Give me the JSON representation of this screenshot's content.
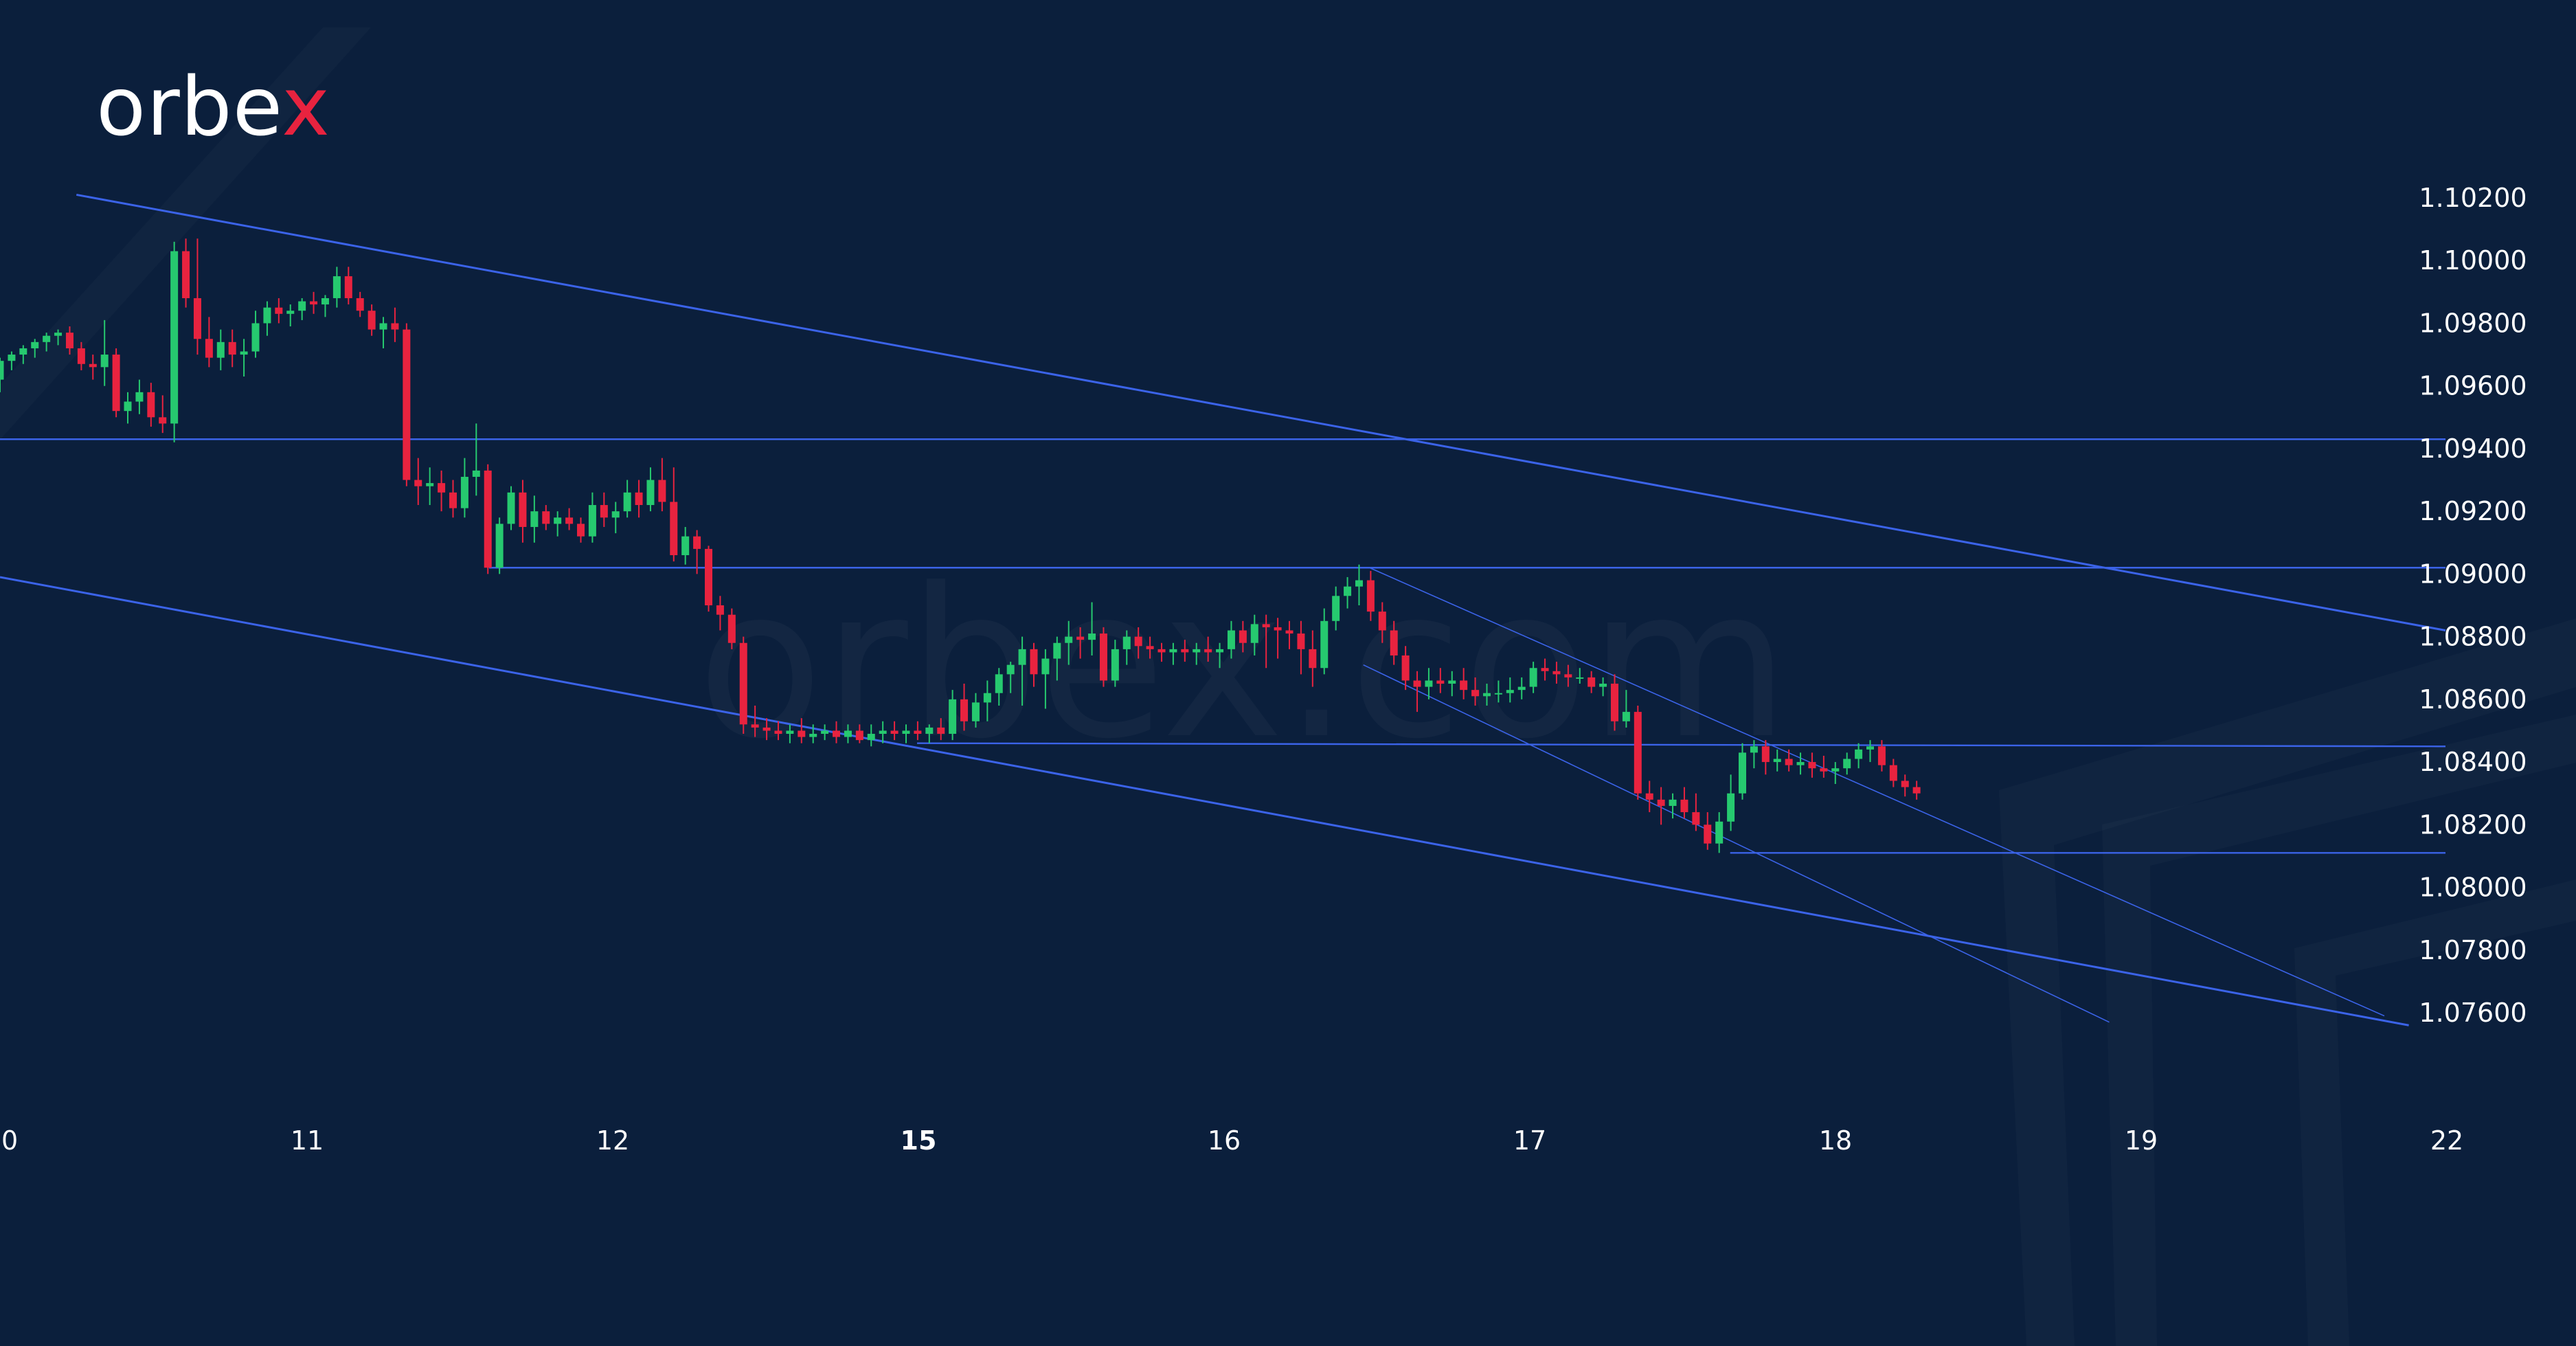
{
  "brand": {
    "logo_main": "orbe",
    "logo_accent": "x",
    "watermark": "orbex.com"
  },
  "colors": {
    "background": "#0b1f3c",
    "bull": "#26c96f",
    "bear": "#e8233f",
    "trendline": "#3b63e8",
    "axis_text": "#ffffff"
  },
  "chart_data": {
    "type": "candlestick",
    "title": "",
    "xlabel": "",
    "ylabel": "",
    "ylim": [
      1.0752,
      1.1025
    ],
    "x_ticks": [
      {
        "t": 0,
        "label": "0"
      },
      {
        "t": 10,
        "label": "11"
      },
      {
        "t": 20,
        "label": "12"
      },
      {
        "t": 30,
        "label": "15",
        "bold": true
      },
      {
        "t": 40,
        "label": "16"
      },
      {
        "t": 50,
        "label": "17"
      },
      {
        "t": 60,
        "label": "18"
      },
      {
        "t": 70,
        "label": "19"
      },
      {
        "t": 80,
        "label": "22"
      }
    ],
    "y_ticks": [
      "1.10200",
      "1.10000",
      "1.09800",
      "1.09600",
      "1.09400",
      "1.09200",
      "1.09000",
      "1.08800",
      "1.08600",
      "1.08400",
      "1.08200",
      "1.08000",
      "1.07800",
      "1.07600"
    ],
    "candles": [
      [
        0.0,
        1.0962,
        1.0969,
        1.0958,
        1.0968
      ],
      [
        0.38,
        1.0968,
        1.0971,
        1.0965,
        1.097
      ],
      [
        0.76,
        1.097,
        1.0973,
        1.0967,
        1.0972
      ],
      [
        1.14,
        1.0972,
        1.0975,
        1.0969,
        1.0974
      ],
      [
        1.52,
        1.0974,
        1.0977,
        1.0971,
        1.0976
      ],
      [
        1.9,
        1.0976,
        1.0978,
        1.0973,
        1.0977
      ],
      [
        2.28,
        1.0977,
        1.0979,
        1.097,
        1.0972
      ],
      [
        2.66,
        1.0972,
        1.0974,
        1.0965,
        1.0967
      ],
      [
        3.04,
        1.0967,
        1.097,
        1.0962,
        1.0966
      ],
      [
        3.42,
        1.0966,
        1.0981,
        1.096,
        1.097
      ],
      [
        3.8,
        1.097,
        1.0972,
        1.095,
        1.0952
      ],
      [
        4.18,
        1.0952,
        1.0958,
        1.0948,
        1.0955
      ],
      [
        4.56,
        1.0955,
        1.0962,
        1.0951,
        1.0958
      ],
      [
        4.94,
        1.0958,
        1.0961,
        1.0947,
        1.095
      ],
      [
        5.32,
        1.095,
        1.0957,
        1.0945,
        1.0948
      ],
      [
        5.7,
        1.0948,
        1.1006,
        1.0942,
        1.1003
      ],
      [
        6.08,
        1.1003,
        1.1007,
        1.0985,
        1.0988
      ],
      [
        6.46,
        1.0988,
        1.1007,
        1.097,
        1.0975
      ],
      [
        6.84,
        1.0975,
        1.0982,
        1.0966,
        1.0969
      ],
      [
        7.22,
        1.0969,
        1.0978,
        1.0965,
        1.0974
      ],
      [
        7.6,
        1.0974,
        1.0978,
        1.0966,
        1.097
      ],
      [
        7.98,
        1.097,
        1.0975,
        1.0963,
        1.0971
      ],
      [
        8.36,
        1.0971,
        1.0984,
        1.0969,
        1.098
      ],
      [
        8.74,
        1.098,
        1.0987,
        1.0976,
        1.0985
      ],
      [
        9.12,
        1.0985,
        1.0988,
        1.098,
        1.0983
      ],
      [
        9.5,
        1.0983,
        1.0986,
        1.0979,
        1.0984
      ],
      [
        9.88,
        1.0984,
        1.0988,
        1.0981,
        1.0987
      ],
      [
        10.26,
        1.0987,
        1.099,
        1.0983,
        1.0986
      ],
      [
        10.64,
        1.0986,
        1.0989,
        1.0982,
        1.0988
      ],
      [
        11.02,
        1.0988,
        1.0998,
        1.0985,
        1.0995
      ],
      [
        11.4,
        1.0995,
        1.0998,
        1.0986,
        1.0988
      ],
      [
        11.78,
        1.0988,
        1.099,
        1.0982,
        1.0984
      ],
      [
        12.16,
        1.0984,
        1.0986,
        1.0976,
        1.0978
      ],
      [
        12.54,
        1.0978,
        1.0982,
        1.0972,
        1.098
      ],
      [
        12.92,
        1.098,
        1.0985,
        1.0974,
        1.0978
      ],
      [
        13.3,
        1.0978,
        1.098,
        1.0928,
        1.093
      ],
      [
        13.68,
        1.093,
        1.0937,
        1.0922,
        1.0928
      ],
      [
        14.06,
        1.0928,
        1.0934,
        1.0922,
        1.0929
      ],
      [
        14.44,
        1.0929,
        1.0933,
        1.092,
        1.0926
      ],
      [
        14.82,
        1.0926,
        1.093,
        1.0918,
        1.0921
      ],
      [
        15.2,
        1.0921,
        1.0937,
        1.0918,
        1.0931
      ],
      [
        15.58,
        1.0931,
        1.0948,
        1.0925,
        1.0933
      ],
      [
        15.96,
        1.0933,
        1.0935,
        1.09,
        1.0902
      ],
      [
        16.34,
        1.0902,
        1.0918,
        1.09,
        1.0916
      ],
      [
        16.72,
        1.0916,
        1.0928,
        1.0914,
        1.0926
      ],
      [
        17.1,
        1.0926,
        1.093,
        1.091,
        1.0915
      ],
      [
        17.48,
        1.0915,
        1.0925,
        1.091,
        1.092
      ],
      [
        17.86,
        1.092,
        1.0922,
        1.0914,
        1.0916
      ],
      [
        18.24,
        1.0916,
        1.092,
        1.0912,
        1.0918
      ],
      [
        18.62,
        1.0918,
        1.0921,
        1.0914,
        1.0916
      ],
      [
        19.0,
        1.0916,
        1.0918,
        1.091,
        1.0912
      ],
      [
        19.38,
        1.0912,
        1.0926,
        1.091,
        1.0922
      ],
      [
        19.76,
        1.0922,
        1.0926,
        1.0915,
        1.0918
      ],
      [
        20.14,
        1.0918,
        1.0923,
        1.0913,
        1.092
      ],
      [
        20.52,
        1.092,
        1.093,
        1.0918,
        1.0926
      ],
      [
        20.9,
        1.0926,
        1.093,
        1.0918,
        1.0922
      ],
      [
        21.28,
        1.0922,
        1.0934,
        1.092,
        1.093
      ],
      [
        21.66,
        1.093,
        1.0937,
        1.092,
        1.0923
      ],
      [
        22.04,
        1.0923,
        1.0934,
        1.0904,
        1.0906
      ],
      [
        22.42,
        1.0906,
        1.0915,
        1.0903,
        1.0912
      ],
      [
        22.8,
        1.0912,
        1.0914,
        1.09,
        1.0908
      ],
      [
        23.18,
        1.0908,
        1.0909,
        1.0888,
        1.089
      ],
      [
        23.56,
        1.089,
        1.0893,
        1.0882,
        1.0887
      ],
      [
        23.94,
        1.0887,
        1.0889,
        1.0876,
        1.0878
      ],
      [
        24.32,
        1.0878,
        1.088,
        1.0849,
        1.0852
      ],
      [
        24.7,
        1.0852,
        1.0858,
        1.0848,
        1.0851
      ],
      [
        25.08,
        1.0851,
        1.0854,
        1.0847,
        1.085
      ],
      [
        25.46,
        1.085,
        1.0853,
        1.0847,
        1.0849
      ],
      [
        25.84,
        1.0849,
        1.0852,
        1.0846,
        1.085
      ],
      [
        26.22,
        1.085,
        1.0854,
        1.0846,
        1.0848
      ],
      [
        26.6,
        1.0848,
        1.0852,
        1.0846,
        1.0849
      ],
      [
        26.98,
        1.0849,
        1.0852,
        1.0847,
        1.085
      ],
      [
        27.36,
        1.085,
        1.0853,
        1.0846,
        1.0848
      ],
      [
        27.74,
        1.0848,
        1.0852,
        1.0846,
        1.085
      ],
      [
        28.12,
        1.085,
        1.0852,
        1.0846,
        1.0847
      ],
      [
        28.5,
        1.0847,
        1.0852,
        1.0845,
        1.0849
      ],
      [
        28.88,
        1.0849,
        1.0853,
        1.0846,
        1.085
      ],
      [
        29.26,
        1.085,
        1.0853,
        1.0847,
        1.0849
      ],
      [
        29.64,
        1.0849,
        1.0852,
        1.0846,
        1.085
      ],
      [
        30.02,
        1.085,
        1.0853,
        1.0847,
        1.0849
      ],
      [
        30.4,
        1.0849,
        1.0852,
        1.0846,
        1.0851
      ],
      [
        30.78,
        1.0851,
        1.0854,
        1.0847,
        1.0849
      ],
      [
        31.16,
        1.0849,
        1.0863,
        1.0847,
        1.086
      ],
      [
        31.54,
        1.086,
        1.0865,
        1.085,
        1.0853
      ],
      [
        31.92,
        1.0853,
        1.0862,
        1.0851,
        1.0859
      ],
      [
        32.3,
        1.0859,
        1.0866,
        1.0853,
        1.0862
      ],
      [
        32.68,
        1.0862,
        1.087,
        1.0858,
        1.0868
      ],
      [
        33.06,
        1.0868,
        1.0872,
        1.0862,
        1.0871
      ],
      [
        33.44,
        1.0871,
        1.088,
        1.0858,
        1.0876
      ],
      [
        33.82,
        1.0876,
        1.0878,
        1.0864,
        1.0868
      ],
      [
        34.2,
        1.0868,
        1.0876,
        1.0857,
        1.0873
      ],
      [
        34.58,
        1.0873,
        1.088,
        1.0866,
        1.0878
      ],
      [
        34.96,
        1.0878,
        1.0885,
        1.0871,
        1.088
      ],
      [
        35.34,
        1.088,
        1.0883,
        1.0873,
        1.0879
      ],
      [
        35.72,
        1.0879,
        1.0891,
        1.0874,
        1.0881
      ],
      [
        36.1,
        1.0881,
        1.0883,
        1.0864,
        1.0866
      ],
      [
        36.48,
        1.0866,
        1.0879,
        1.0864,
        1.0876
      ],
      [
        36.86,
        1.0876,
        1.0882,
        1.0871,
        1.088
      ],
      [
        37.24,
        1.088,
        1.0883,
        1.0873,
        1.0877
      ],
      [
        37.62,
        1.0877,
        1.088,
        1.0873,
        1.0876
      ],
      [
        38.0,
        1.0876,
        1.0878,
        1.0872,
        1.0875
      ],
      [
        38.38,
        1.0875,
        1.0878,
        1.0871,
        1.0876
      ],
      [
        38.76,
        1.0876,
        1.0879,
        1.0872,
        1.0875
      ],
      [
        39.14,
        1.0875,
        1.0878,
        1.0871,
        1.0876
      ],
      [
        39.52,
        1.0876,
        1.088,
        1.0872,
        1.0875
      ],
      [
        39.9,
        1.0875,
        1.0878,
        1.087,
        1.0876
      ],
      [
        40.28,
        1.0876,
        1.0885,
        1.0873,
        1.0882
      ],
      [
        40.66,
        1.0882,
        1.0885,
        1.0875,
        1.0878
      ],
      [
        41.04,
        1.0878,
        1.0887,
        1.0874,
        1.0884
      ],
      [
        41.42,
        1.0884,
        1.0887,
        1.087,
        1.0883
      ],
      [
        41.8,
        1.0883,
        1.0886,
        1.0873,
        1.0882
      ],
      [
        42.18,
        1.0882,
        1.0885,
        1.0876,
        1.0881
      ],
      [
        42.56,
        1.0881,
        1.0885,
        1.0868,
        1.0876
      ],
      [
        42.94,
        1.0876,
        1.0882,
        1.0864,
        1.087
      ],
      [
        43.32,
        1.087,
        1.0889,
        1.0868,
        1.0885
      ],
      [
        43.7,
        1.0885,
        1.0896,
        1.0882,
        1.0893
      ],
      [
        44.08,
        1.0893,
        1.0899,
        1.0889,
        1.0896
      ],
      [
        44.46,
        1.0896,
        1.0903,
        1.089,
        1.0898
      ],
      [
        44.84,
        1.0898,
        1.0901,
        1.0885,
        1.0888
      ],
      [
        45.22,
        1.0888,
        1.0891,
        1.0878,
        1.0882
      ],
      [
        45.6,
        1.0882,
        1.0885,
        1.0871,
        1.0874
      ],
      [
        45.98,
        1.0874,
        1.0877,
        1.0863,
        1.0866
      ],
      [
        46.36,
        1.0866,
        1.0869,
        1.0856,
        1.0864
      ],
      [
        46.74,
        1.0864,
        1.087,
        1.086,
        1.0866
      ],
      [
        47.12,
        1.0866,
        1.087,
        1.0862,
        1.0865
      ],
      [
        47.5,
        1.0865,
        1.0869,
        1.0861,
        1.0866
      ],
      [
        47.88,
        1.0866,
        1.087,
        1.086,
        1.0863
      ],
      [
        48.26,
        1.0863,
        1.0867,
        1.0858,
        1.0861
      ],
      [
        48.64,
        1.0861,
        1.0865,
        1.0858,
        1.0862
      ],
      [
        49.02,
        1.0862,
        1.0866,
        1.0859,
        1.0862
      ],
      [
        49.4,
        1.0862,
        1.0867,
        1.0859,
        1.0863
      ],
      [
        49.78,
        1.0863,
        1.0867,
        1.086,
        1.0864
      ],
      [
        50.16,
        1.0864,
        1.0872,
        1.0862,
        1.087
      ],
      [
        50.54,
        1.087,
        1.0873,
        1.0866,
        1.0869
      ],
      [
        50.92,
        1.0869,
        1.0872,
        1.0865,
        1.0868
      ],
      [
        51.3,
        1.0868,
        1.0871,
        1.0864,
        1.0867
      ],
      [
        51.68,
        1.0867,
        1.087,
        1.0865,
        1.0867
      ],
      [
        52.06,
        1.0867,
        1.0869,
        1.0862,
        1.0864
      ],
      [
        52.44,
        1.0864,
        1.0867,
        1.0861,
        1.0865
      ],
      [
        52.82,
        1.0865,
        1.0868,
        1.085,
        1.0853
      ],
      [
        53.2,
        1.0853,
        1.0863,
        1.0851,
        1.0856
      ],
      [
        53.58,
        1.0856,
        1.0858,
        1.0828,
        1.083
      ],
      [
        53.96,
        1.083,
        1.0834,
        1.0824,
        1.0828
      ],
      [
        54.34,
        1.0828,
        1.0832,
        1.082,
        1.0826
      ],
      [
        54.72,
        1.0826,
        1.083,
        1.0822,
        1.0828
      ],
      [
        55.1,
        1.0828,
        1.0832,
        1.0822,
        1.0824
      ],
      [
        55.48,
        1.0824,
        1.083,
        1.0818,
        1.082
      ],
      [
        55.86,
        1.082,
        1.0824,
        1.0812,
        1.0814
      ],
      [
        56.24,
        1.0814,
        1.0824,
        1.0811,
        1.0821
      ],
      [
        56.62,
        1.0821,
        1.0836,
        1.0818,
        1.083
      ],
      [
        57.0,
        1.083,
        1.0846,
        1.0828,
        1.0843
      ],
      [
        57.38,
        1.0843,
        1.0847,
        1.0838,
        1.0845
      ],
      [
        57.76,
        1.0845,
        1.0847,
        1.0836,
        1.084
      ],
      [
        58.14,
        1.084,
        1.0844,
        1.0837,
        1.0841
      ],
      [
        58.52,
        1.0841,
        1.0844,
        1.0837,
        1.0839
      ],
      [
        58.9,
        1.0839,
        1.0843,
        1.0836,
        1.084
      ],
      [
        59.28,
        1.084,
        1.0843,
        1.0835,
        1.0838
      ],
      [
        59.66,
        1.0838,
        1.0842,
        1.0835,
        1.0837
      ],
      [
        60.04,
        1.0837,
        1.084,
        1.0833,
        1.0838
      ],
      [
        60.42,
        1.0838,
        1.0843,
        1.0836,
        1.0841
      ],
      [
        60.8,
        1.0841,
        1.0846,
        1.0838,
        1.0844
      ],
      [
        61.18,
        1.0844,
        1.0847,
        1.084,
        1.0845
      ],
      [
        61.56,
        1.0845,
        1.0847,
        1.0837,
        1.0839
      ],
      [
        61.94,
        1.0839,
        1.0841,
        1.0832,
        1.0834
      ],
      [
        62.32,
        1.0834,
        1.0836,
        1.0829,
        1.0832
      ],
      [
        62.7,
        1.0832,
        1.0834,
        1.0828,
        1.083
      ]
    ],
    "lines": [
      {
        "name": "main-channel-upper",
        "pts": [
          [
            2.5,
            1.1021
          ],
          [
            80,
            1.0882
          ]
        ],
        "width": 3
      },
      {
        "name": "main-channel-lower",
        "pts": [
          [
            0,
            1.0899
          ],
          [
            78.8,
            1.0756
          ]
        ],
        "width": 3
      },
      {
        "name": "support-1.0942",
        "pts": [
          [
            0,
            1.0943
          ],
          [
            80,
            1.0943
          ]
        ],
        "width": 2.4
      },
      {
        "name": "level-1.0902",
        "pts": [
          [
            16,
            1.0902
          ],
          [
            80,
            1.0902
          ]
        ],
        "width": 2.4
      },
      {
        "name": "level-1.0845",
        "pts": [
          [
            30,
            1.0846
          ],
          [
            80,
            1.0845
          ]
        ],
        "width": 2.4
      },
      {
        "name": "level-1.0811",
        "pts": [
          [
            56.6,
            1.0811
          ],
          [
            80,
            1.0811
          ]
        ],
        "width": 2.4
      },
      {
        "name": "small-channel-upper",
        "pts": [
          [
            44.8,
            1.0902
          ],
          [
            78,
            1.0759
          ]
        ],
        "width": 1.6
      },
      {
        "name": "small-channel-lower",
        "pts": [
          [
            44.6,
            1.0871
          ],
          [
            69,
            1.0757
          ]
        ],
        "width": 1.6
      }
    ]
  }
}
